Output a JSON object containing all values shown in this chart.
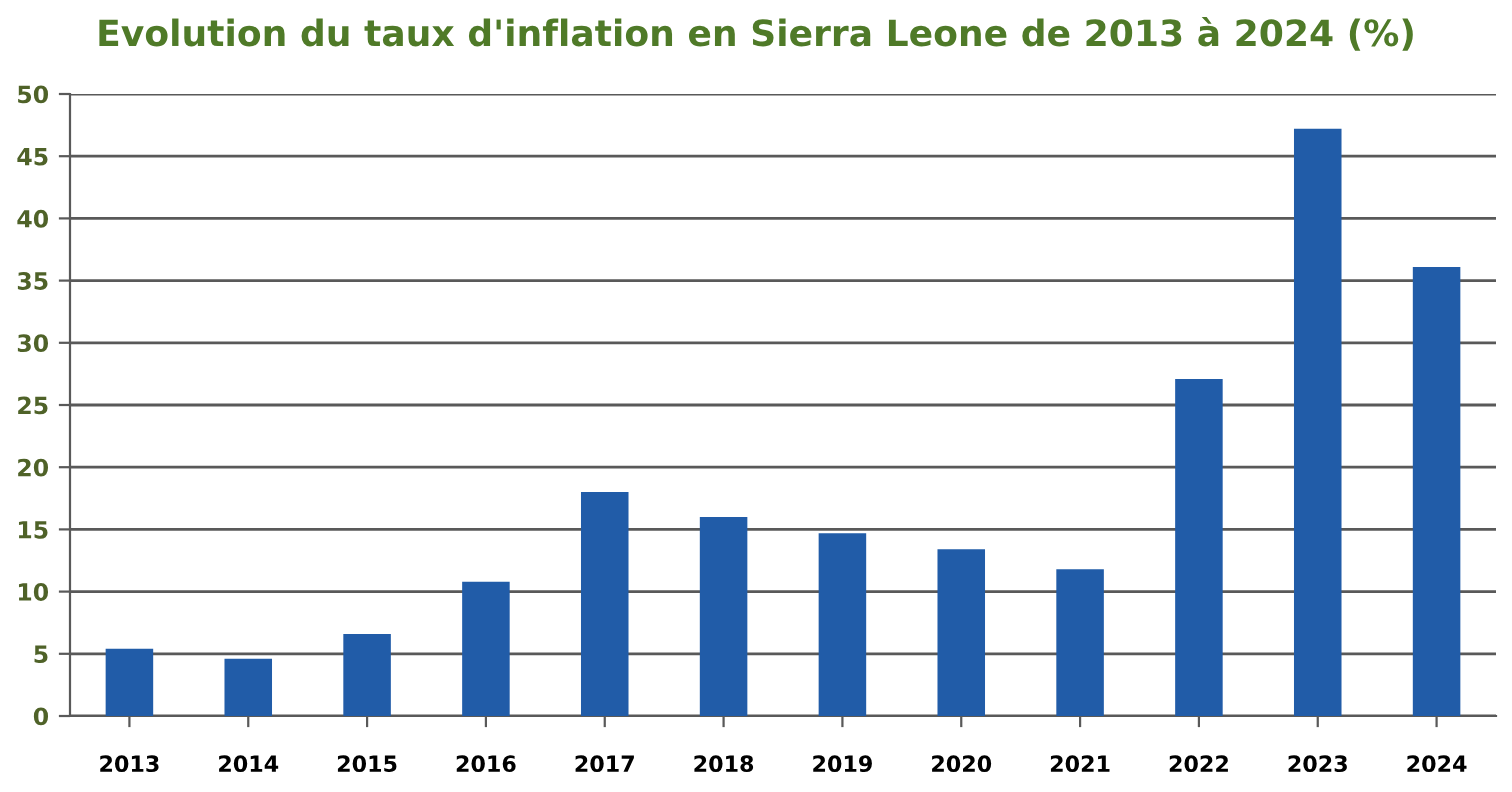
{
  "chart_data": {
    "type": "bar",
    "title": "Evolution du taux d'inflation en Sierra Leone de 2013 à 2024 (%)",
    "categories": [
      "2013",
      "2014",
      "2015",
      "2016",
      "2017",
      "2018",
      "2019",
      "2020",
      "2021",
      "2022",
      "2023",
      "2024"
    ],
    "values": [
      5.4,
      4.6,
      6.6,
      10.8,
      18.0,
      16.0,
      14.7,
      13.4,
      11.8,
      27.1,
      47.2,
      36.1
    ],
    "color": "#215ca8",
    "ylim": [
      0,
      50
    ],
    "yticks": [
      0,
      5,
      10,
      15,
      20,
      25,
      30,
      35,
      40,
      45,
      50
    ],
    "grid": "y"
  }
}
